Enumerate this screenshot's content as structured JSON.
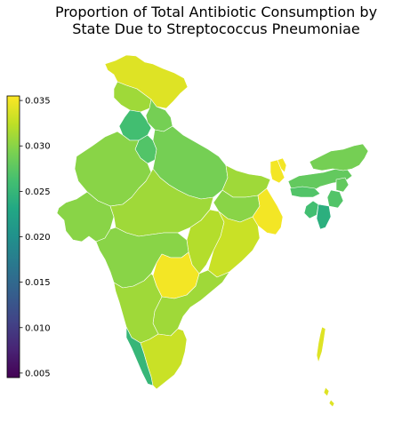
{
  "title_line1": "Proportion of Total Antibiotic Consumption by",
  "title_line2": "State Due to Streptococcus Pneumoniae",
  "colorbar": {
    "colormap": "viridis",
    "min": 0.0045,
    "max": 0.0355,
    "ticks": [
      "0.035",
      "0.030",
      "0.025",
      "0.020",
      "0.015",
      "0.010",
      "0.005"
    ]
  },
  "regions": [
    {
      "name": "Jammu & Kashmir",
      "value": 0.034
    },
    {
      "name": "Himachal Pradesh",
      "value": 0.031
    },
    {
      "name": "Punjab",
      "value": 0.026
    },
    {
      "name": "Uttarakhand",
      "value": 0.029
    },
    {
      "name": "Haryana",
      "value": 0.027
    },
    {
      "name": "Rajasthan",
      "value": 0.03
    },
    {
      "name": "Uttar Pradesh",
      "value": 0.029
    },
    {
      "name": "Bihar",
      "value": 0.031
    },
    {
      "name": "Gujarat",
      "value": 0.03
    },
    {
      "name": "Madhya Pradesh",
      "value": 0.031
    },
    {
      "name": "Jharkhand",
      "value": 0.03
    },
    {
      "name": "West Bengal",
      "value": 0.035
    },
    {
      "name": "Chhattisgarh",
      "value": 0.032
    },
    {
      "name": "Odisha",
      "value": 0.033
    },
    {
      "name": "Maharashtra",
      "value": 0.03
    },
    {
      "name": "Telangana",
      "value": 0.035
    },
    {
      "name": "Andhra Pradesh",
      "value": 0.031
    },
    {
      "name": "Karnataka",
      "value": 0.031
    },
    {
      "name": "Kerala",
      "value": 0.025
    },
    {
      "name": "Tamil Nadu",
      "value": 0.033
    },
    {
      "name": "Sikkim",
      "value": 0.035
    },
    {
      "name": "Assam",
      "value": 0.028
    },
    {
      "name": "Arunachal Pradesh",
      "value": 0.029
    },
    {
      "name": "Meghalaya",
      "value": 0.027
    },
    {
      "name": "Nagaland",
      "value": 0.028
    },
    {
      "name": "Manipur",
      "value": 0.027
    },
    {
      "name": "Mizoram",
      "value": 0.024
    },
    {
      "name": "Tripura",
      "value": 0.026
    },
    {
      "name": "Andaman & Nicobar",
      "value": 0.034
    }
  ]
}
